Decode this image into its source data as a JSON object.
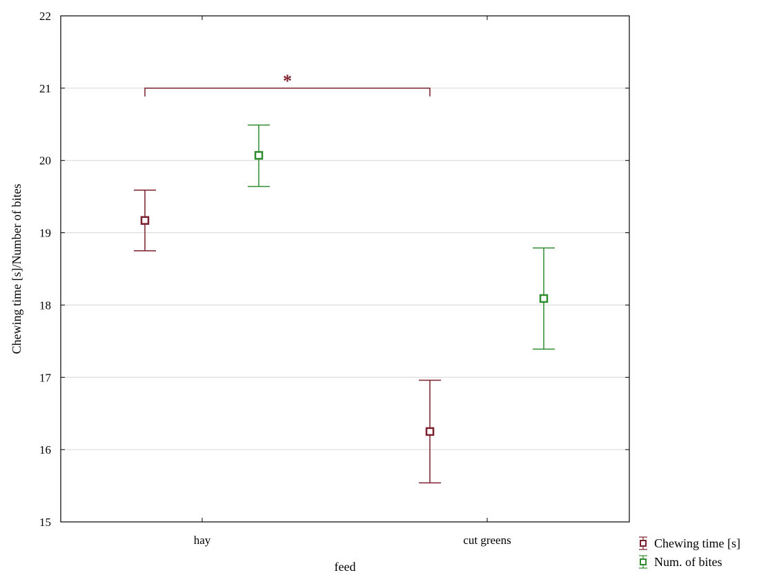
{
  "chart_data": {
    "type": "scatter",
    "xlabel": "feed",
    "ylabel": "Chewing time [s]/Number of bites",
    "categories": [
      "hay",
      "cut greens"
    ],
    "ylim": [
      15,
      22
    ],
    "yticks": [
      15,
      16,
      17,
      18,
      19,
      20,
      21,
      22
    ],
    "grid": true,
    "legend_position": "bottom-right",
    "series": [
      {
        "name": "Chewing time [s]",
        "color": "#7a1f2b",
        "marker": "square-open",
        "values": [
          19.17,
          16.25
        ],
        "lower": [
          18.75,
          15.54
        ],
        "upper": [
          19.59,
          16.96
        ]
      },
      {
        "name": "Num. of bites",
        "color": "#2e8b2e",
        "marker": "square-open",
        "values": [
          20.07,
          18.09
        ],
        "lower": [
          19.64,
          17.39
        ],
        "upper": [
          20.49,
          18.79
        ]
      }
    ],
    "annotations": [
      {
        "type": "significance-bracket",
        "label": "*",
        "series": "Chewing time [s]",
        "between": [
          "hay",
          "cut greens"
        ],
        "y": 21.0,
        "color": "#7a1f2b"
      }
    ]
  }
}
